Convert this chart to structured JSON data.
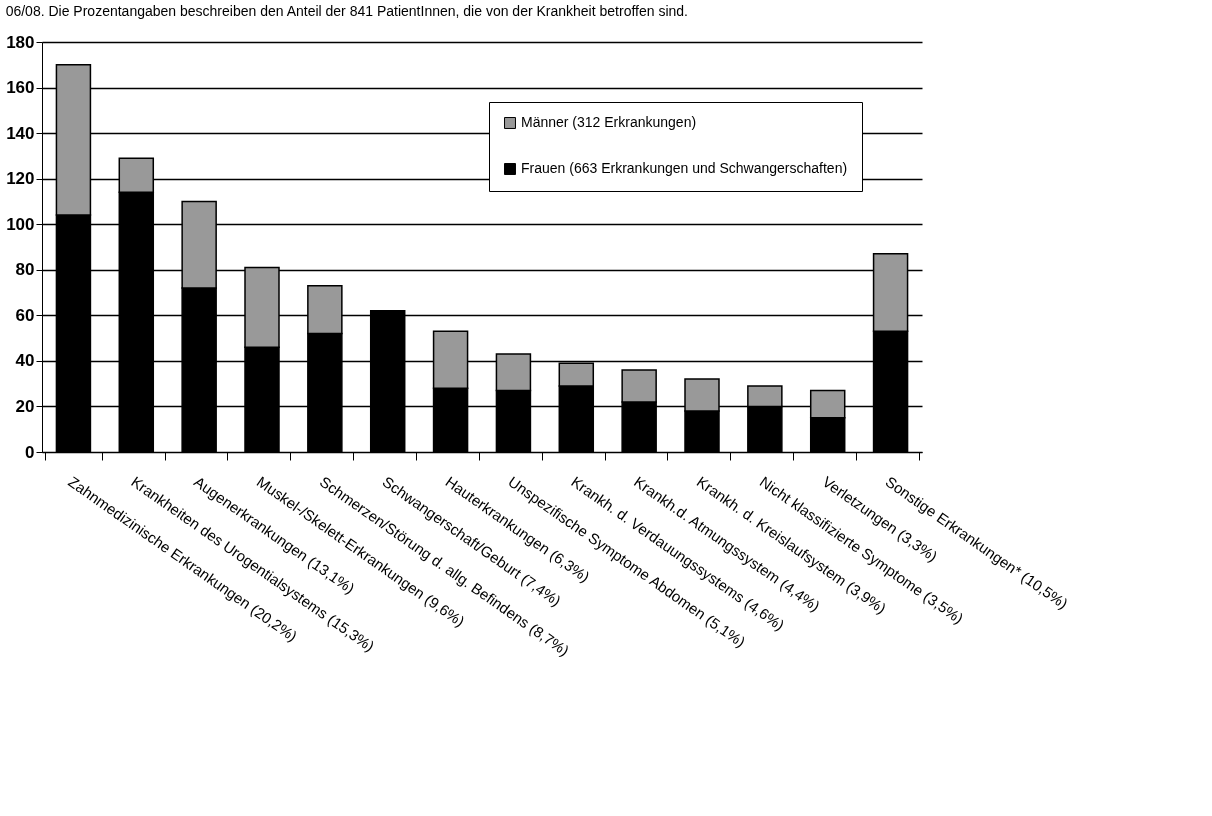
{
  "chart_data": {
    "type": "bar",
    "stacked": true,
    "title": "06/08. Die Prozentangaben beschreiben den Anteil der 841 PatientInnen, die von der Krankheit betroffen sind.",
    "categories": [
      "Zahnmedizinische Erkrankungen (20,2%)",
      "Krankheiten des Urogentialsystems (15,3%)",
      "Augenerkrankungen (13,1%)",
      "Muskel-/Skelett-Erkrankungen (9,6%)",
      "Schmerzen/Störung d. allg. Befindens (8,7%)",
      "Schwangerschaft/Geburt (7,4%)",
      "Hauterkrankungen (6,3%)",
      "Unspezifische Symptome Abdomen (5,1%)",
      "Krankh. d. Verdauungssystems (4,6%)",
      "Krankh.d. Atmungssystem (4,4%)",
      "Krankh. d. Kreislaufsystem (3,9%)",
      "Nicht klassifizierte Symptome (3,5%)",
      "Verletzungen (3,3%)",
      "Sonstige Erkrankungen* (10,5%)"
    ],
    "series": [
      {
        "name": "Frauen (663 Erkrankungen und Schwangerschaften)",
        "color": "#000000",
        "values": [
          104,
          114,
          72,
          46,
          52,
          62,
          28,
          27,
          29,
          22,
          18,
          20,
          15,
          53
        ]
      },
      {
        "name": "Männer (312 Erkrankungen)",
        "color": "#999999",
        "values": [
          66,
          15,
          38,
          35,
          21,
          null,
          25,
          16,
          10,
          14,
          14,
          9,
          12,
          34
        ]
      }
    ],
    "ylim": [
      0,
      180
    ],
    "yticks": [
      0,
      20,
      40,
      60,
      80,
      100,
      120,
      140,
      160,
      180
    ],
    "grid": "y",
    "legend": "top right"
  }
}
